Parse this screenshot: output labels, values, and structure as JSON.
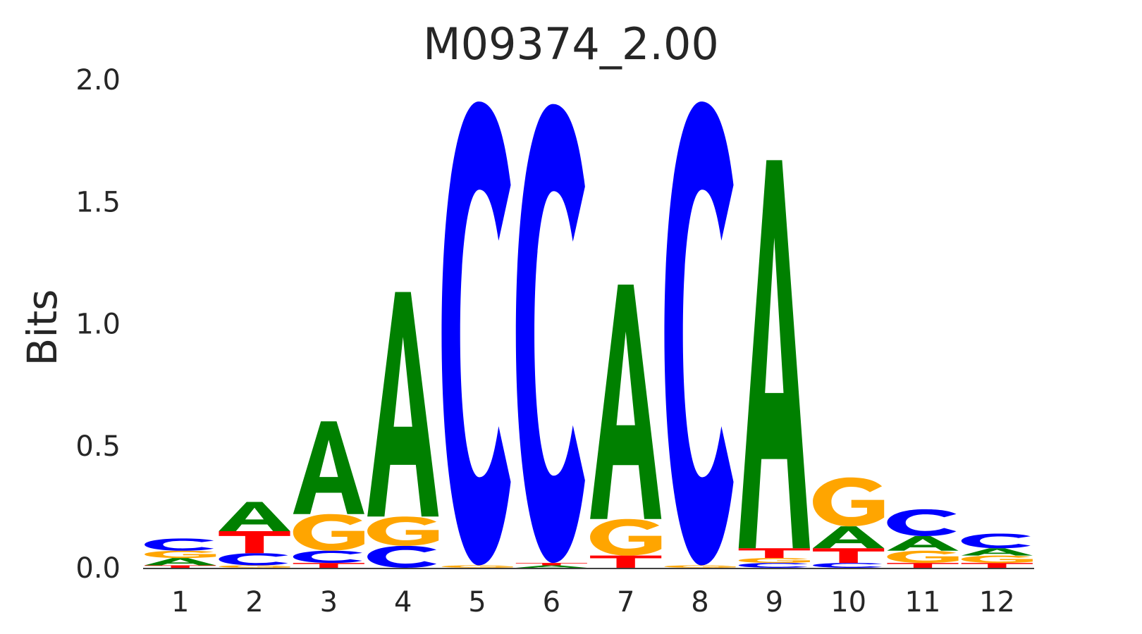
{
  "chart_data": {
    "type": "sequence-logo",
    "title": "M09374_2.00",
    "xlabel": "",
    "ylabel": "Bits",
    "ylim": [
      0,
      2
    ],
    "yticks": [
      "0.0",
      "0.5",
      "1.0",
      "1.5",
      "2.0"
    ],
    "grid": false,
    "colors": {
      "A": "#008000",
      "C": "#0000ff",
      "G": "#ffa500",
      "T": "#ff0000"
    },
    "positions": [
      {
        "label": "1",
        "letters": [
          {
            "base": "T",
            "bits": 0.01
          },
          {
            "base": "A",
            "bits": 0.03
          },
          {
            "base": "G",
            "bits": 0.03
          },
          {
            "base": "C",
            "bits": 0.05
          }
        ]
      },
      {
        "label": "2",
        "letters": [
          {
            "base": "G",
            "bits": 0.01
          },
          {
            "base": "C",
            "bits": 0.05
          },
          {
            "base": "T",
            "bits": 0.09
          },
          {
            "base": "A",
            "bits": 0.12
          }
        ]
      },
      {
        "label": "3",
        "letters": [
          {
            "base": "T",
            "bits": 0.02
          },
          {
            "base": "C",
            "bits": 0.05
          },
          {
            "base": "G",
            "bits": 0.15
          },
          {
            "base": "A",
            "bits": 0.38
          }
        ]
      },
      {
        "label": "4",
        "letters": [
          {
            "base": "C",
            "bits": 0.09
          },
          {
            "base": "G",
            "bits": 0.12
          },
          {
            "base": "A",
            "bits": 0.92
          }
        ]
      },
      {
        "label": "5",
        "letters": [
          {
            "base": "G",
            "bits": 0.01
          },
          {
            "base": "C",
            "bits": 1.9
          }
        ]
      },
      {
        "label": "6",
        "letters": [
          {
            "base": "A",
            "bits": 0.01
          },
          {
            "base": "T",
            "bits": 0.01
          },
          {
            "base": "C",
            "bits": 1.88
          }
        ]
      },
      {
        "label": "7",
        "letters": [
          {
            "base": "T",
            "bits": 0.05
          },
          {
            "base": "G",
            "bits": 0.15
          },
          {
            "base": "A",
            "bits": 0.96
          }
        ]
      },
      {
        "label": "8",
        "letters": [
          {
            "base": "G",
            "bits": 0.01
          },
          {
            "base": "C",
            "bits": 1.9
          }
        ]
      },
      {
        "label": "9",
        "letters": [
          {
            "base": "C",
            "bits": 0.02
          },
          {
            "base": "G",
            "bits": 0.02
          },
          {
            "base": "T",
            "bits": 0.04
          },
          {
            "base": "A",
            "bits": 1.59
          }
        ]
      },
      {
        "label": "10",
        "letters": [
          {
            "base": "C",
            "bits": 0.02
          },
          {
            "base": "T",
            "bits": 0.06
          },
          {
            "base": "A",
            "bits": 0.09
          },
          {
            "base": "G",
            "bits": 0.2
          }
        ]
      },
      {
        "label": "11",
        "letters": [
          {
            "base": "T",
            "bits": 0.02
          },
          {
            "base": "G",
            "bits": 0.05
          },
          {
            "base": "A",
            "bits": 0.06
          },
          {
            "base": "C",
            "bits": 0.11
          }
        ]
      },
      {
        "label": "12",
        "letters": [
          {
            "base": "T",
            "bits": 0.02
          },
          {
            "base": "G",
            "bits": 0.03
          },
          {
            "base": "A",
            "bits": 0.03
          },
          {
            "base": "C",
            "bits": 0.06
          }
        ]
      }
    ]
  }
}
